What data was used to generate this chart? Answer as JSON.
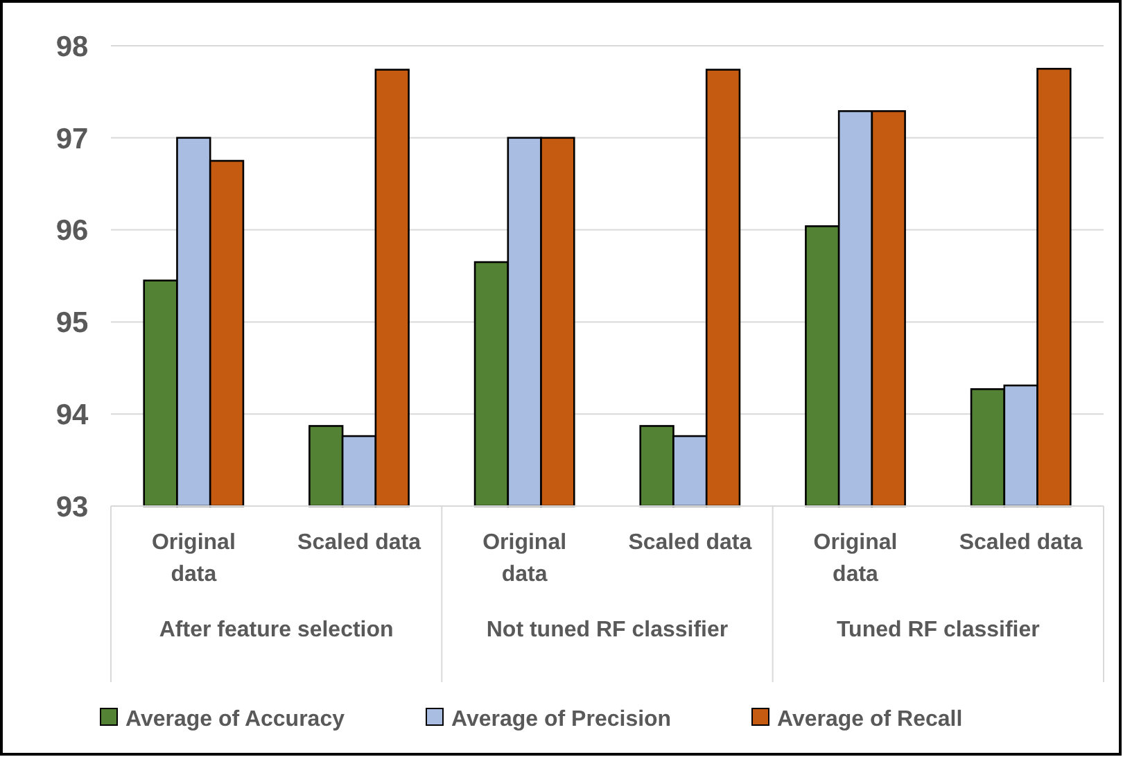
{
  "chart_data": {
    "type": "bar",
    "categories": [
      "Original data",
      "Scaled data",
      "Original data",
      "Scaled data",
      "Original data",
      "Scaled data"
    ],
    "annotations": [
      "After feature selection",
      "Not tuned RF classifier",
      "Tuned RF classifier"
    ],
    "series": [
      {
        "name": "Average of Accuracy",
        "color": "#548235",
        "values": [
          95.45,
          93.87,
          95.65,
          93.87,
          96.04,
          94.27
        ]
      },
      {
        "name": "Average of Precision",
        "color": "#a9bde3",
        "values": [
          97.0,
          93.76,
          97.0,
          93.76,
          97.29,
          94.31
        ]
      },
      {
        "name": "Average of Recall",
        "color": "#c55a11",
        "values": [
          96.75,
          97.74,
          97.0,
          97.74,
          97.29,
          97.75
        ]
      }
    ],
    "ylim": [
      93,
      98
    ],
    "yticks": [
      93,
      94,
      95,
      96,
      97,
      98
    ],
    "grid": "y",
    "legend": "bottom"
  }
}
